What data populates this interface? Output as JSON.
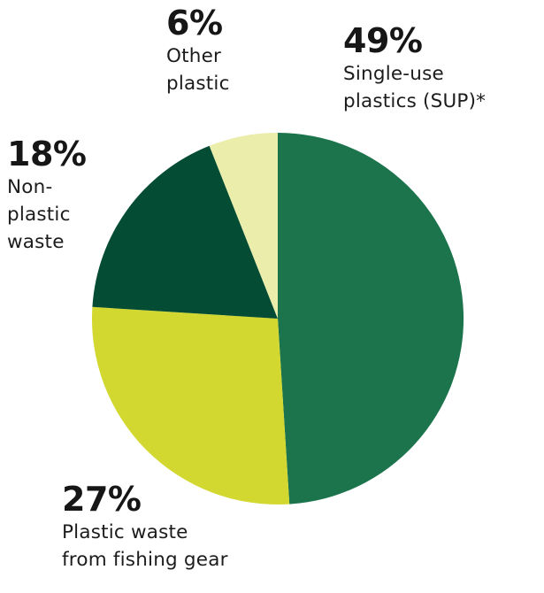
{
  "chart_data": {
    "type": "pie",
    "start_angle_deg": 0,
    "direction": "clockwise",
    "slices": [
      {
        "label": "49%",
        "name_lines": [
          "Single-use",
          "plastics (SUP)*"
        ],
        "value": 49,
        "color": "#1c744d"
      },
      {
        "label": "27%",
        "name_lines": [
          "Plastic waste",
          "from fishing gear"
        ],
        "value": 27,
        "color": "#d2d830"
      },
      {
        "label": "18%",
        "name_lines": [
          "Non-",
          "plastic",
          "waste"
        ],
        "value": 18,
        "color": "#044d34"
      },
      {
        "label": "6%",
        "name_lines": [
          "Other",
          "plastic"
        ],
        "value": 6,
        "color": "#ebedab"
      }
    ]
  }
}
